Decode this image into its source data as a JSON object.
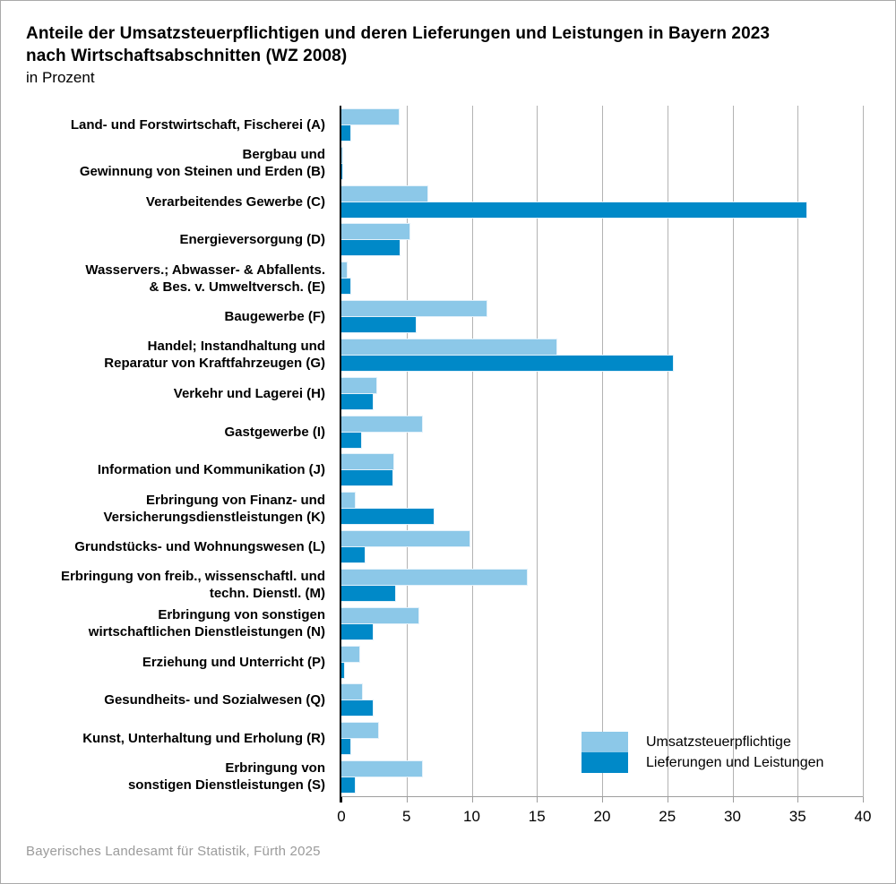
{
  "title": {
    "line1": "Anteile der Umsatzsteuerpflichtigen und deren Lieferungen und Leistungen in Bayern 2023",
    "line2": "nach Wirtschaftsabschnitten (WZ 2008)",
    "subtitle": "in Prozent"
  },
  "footer": "Bayerisches Landesamt für Statistik, Fürth 2025",
  "colors": {
    "series_light": "#8cc8e8",
    "series_dark": "#0089c8",
    "gridline": "#b3b3b3",
    "axis": "#000000",
    "footer_text": "#9b9b9b"
  },
  "legend": [
    {
      "label": "Umsatzsteuerpflichtige",
      "color": "#8cc8e8"
    },
    {
      "label": "Lieferungen und Leistungen",
      "color": "#0089c8"
    }
  ],
  "chart_data": {
    "type": "bar",
    "orientation": "horizontal",
    "title": "Anteile der Umsatzsteuerpflichtigen und deren Lieferungen und Leistungen in Bayern 2023 nach Wirtschaftsabschnitten (WZ 2008)",
    "xlabel": "in Prozent",
    "xlim": [
      0,
      40
    ],
    "xticks": [
      0,
      5,
      10,
      15,
      20,
      25,
      30,
      35,
      40
    ],
    "grid": true,
    "legend_position": "bottom-right-inside",
    "categories": [
      "Land- und Forstwirtschaft, Fischerei (A)",
      "Bergbau und\nGewinnung von Steinen und Erden (B)",
      "Verarbeitendes Gewerbe (C)",
      "Energieversorgung (D)",
      "Wasservers.; Abwasser- & Abfallents.\n& Bes. v. Umweltversch. (E)",
      "Baugewerbe (F)",
      "Handel; Instandhaltung und\nReparatur von Kraftfahrzeugen (G)",
      "Verkehr und Lagerei (H)",
      "Gastgewerbe (I)",
      "Information und Kommunikation (J)",
      "Erbringung von Finanz- und\nVersicherungsdienstleistungen (K)",
      "Grundstücks- und Wohnungswesen (L)",
      "Erbringung von freib., wissenschaftl. und\ntechn. Dienstl. (M)",
      "Erbringung von sonstigen\nwirtschaftlichen Dienstleistungen (N)",
      "Erziehung und Unterricht (P)",
      "Gesundheits- und Sozialwesen (Q)",
      "Kunst, Unterhaltung und Erholung (R)",
      "Erbringung von\nsonstigen Dienstleistungen (S)"
    ],
    "series": [
      {
        "name": "Umsatzsteuerpflichtige",
        "color": "#8cc8e8",
        "values": [
          4.4,
          0.1,
          6.6,
          5.2,
          0.4,
          11.1,
          16.5,
          2.7,
          6.2,
          4.0,
          1.0,
          9.8,
          14.2,
          5.9,
          1.4,
          1.6,
          2.8,
          6.2
        ]
      },
      {
        "name": "Lieferungen und Leistungen",
        "color": "#0089c8",
        "values": [
          0.7,
          0.1,
          35.7,
          4.5,
          0.7,
          5.7,
          25.4,
          2.4,
          1.5,
          3.9,
          7.1,
          1.8,
          4.1,
          2.4,
          0.2,
          2.4,
          0.7,
          1.0
        ]
      }
    ]
  }
}
